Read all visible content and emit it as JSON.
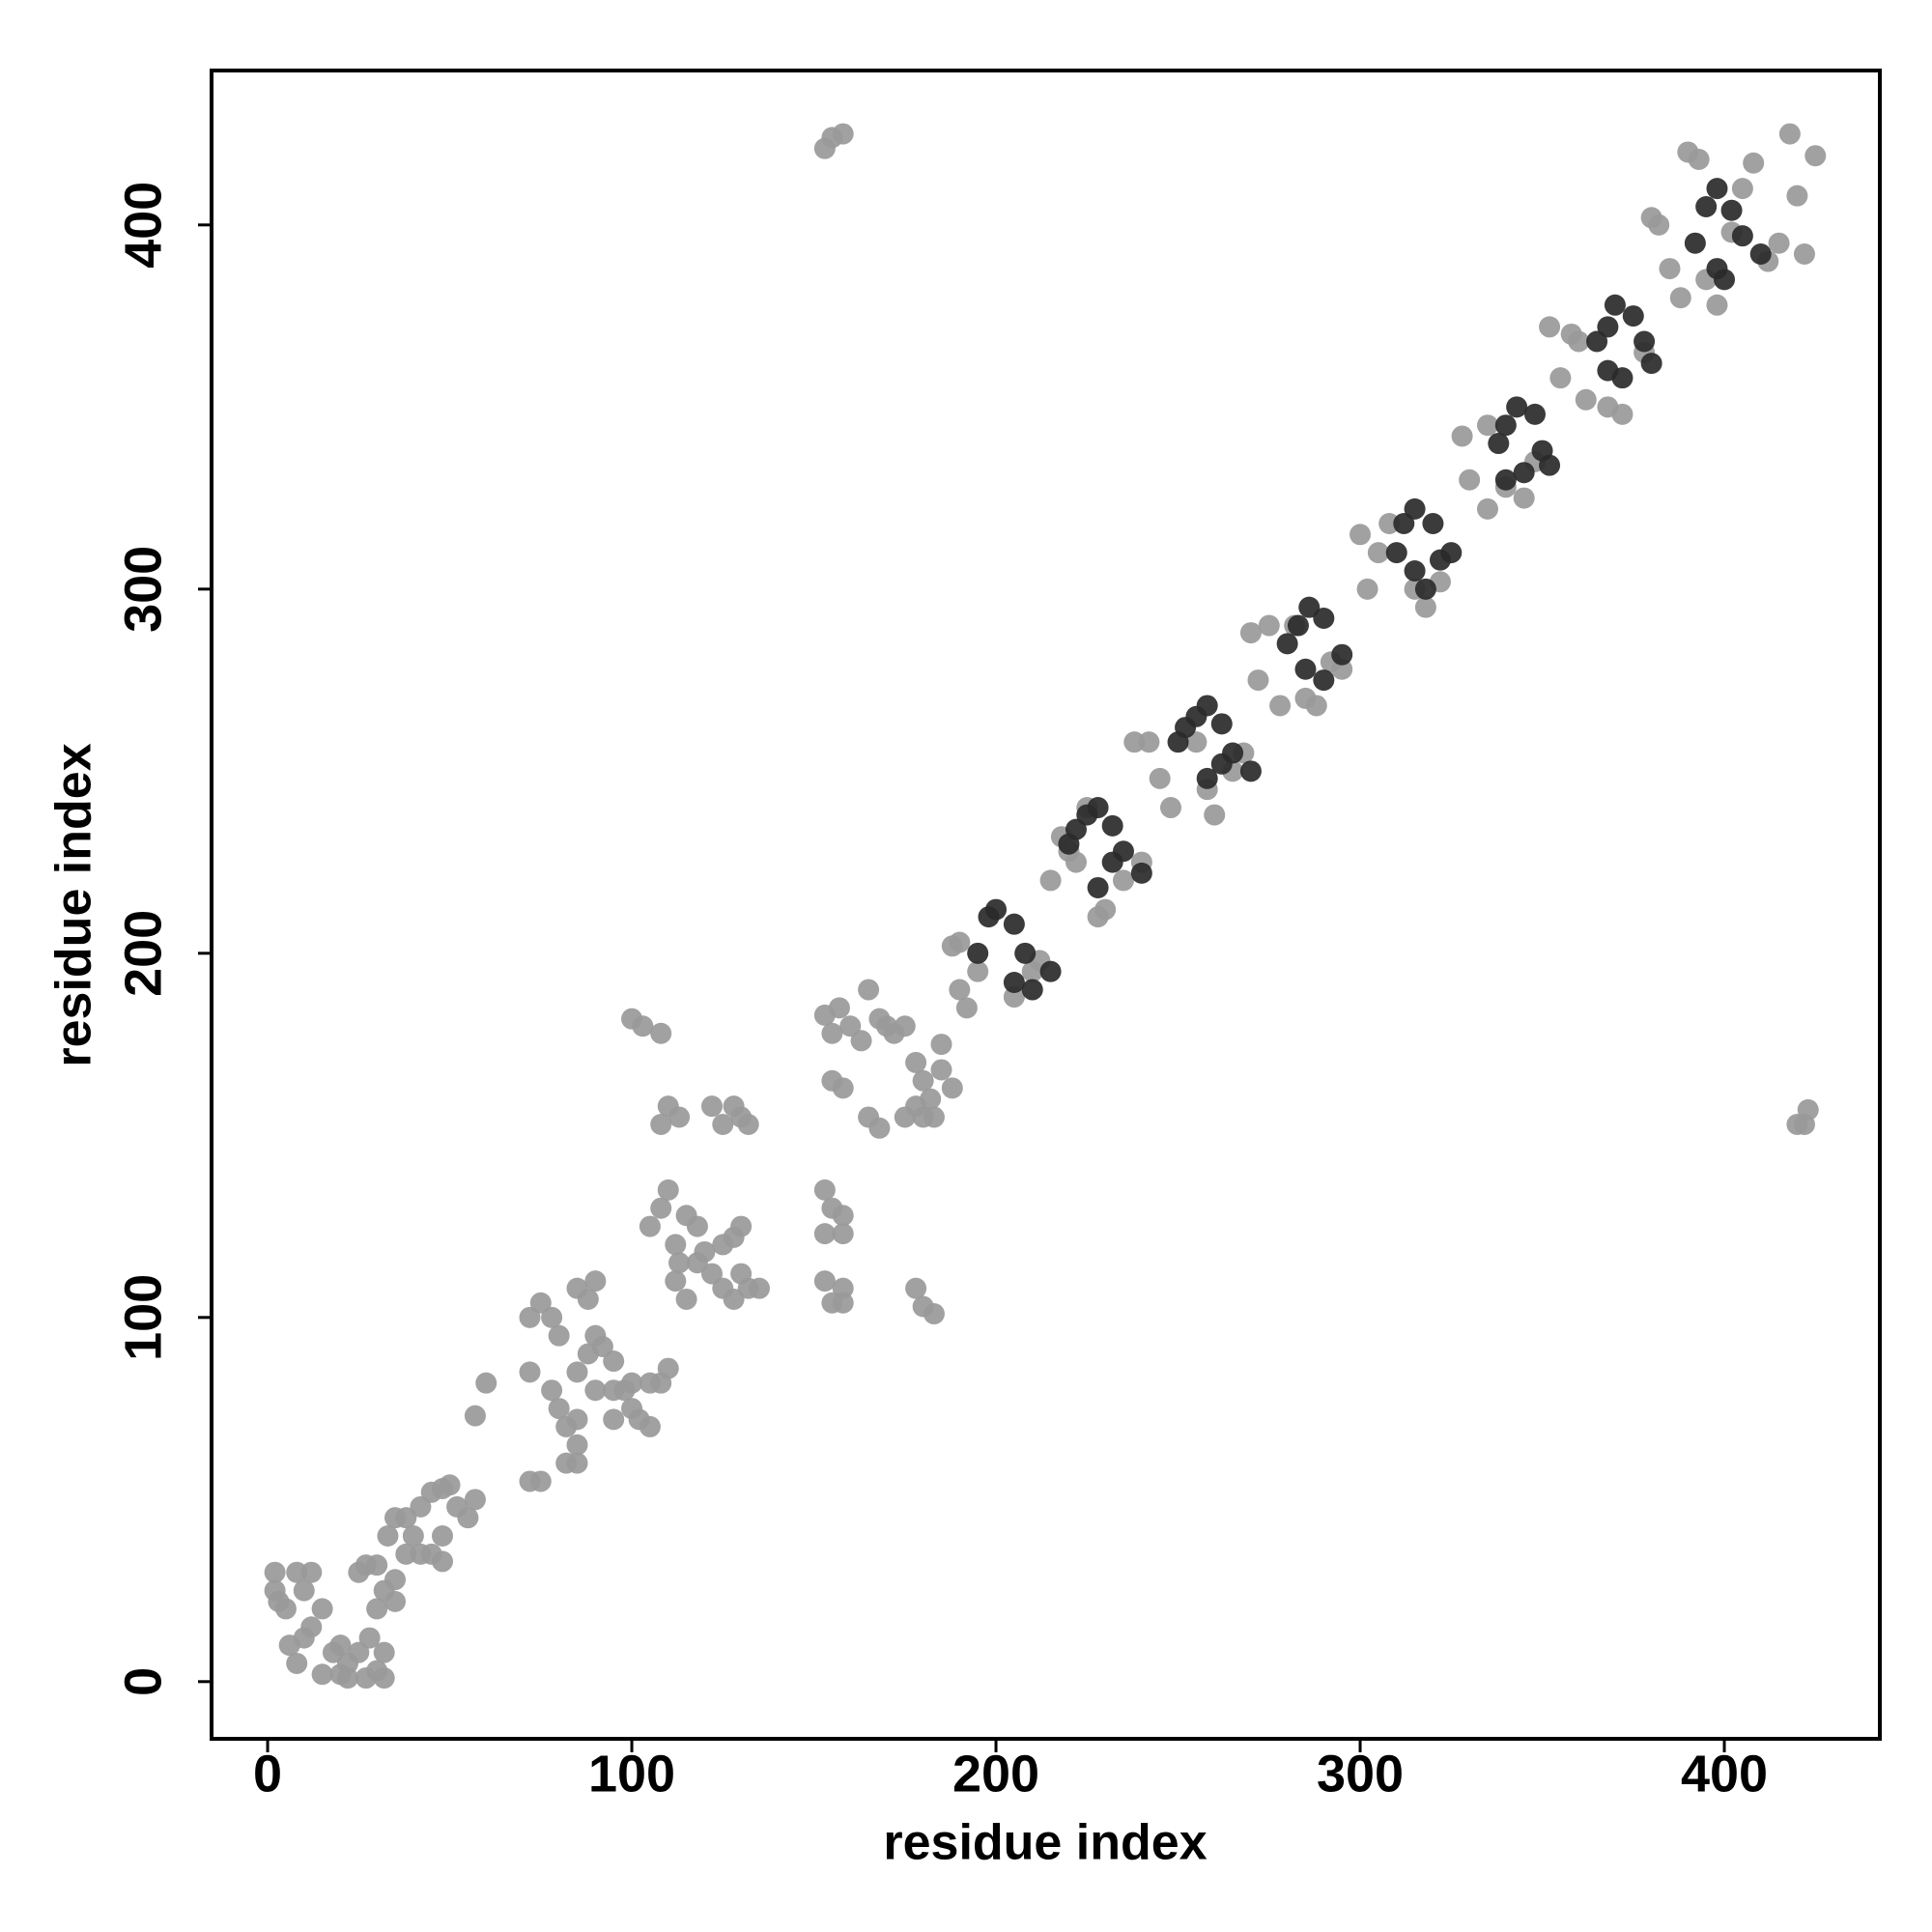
{
  "chart_data": {
    "type": "scatter",
    "x_label": "residue index",
    "y_label": "residue index",
    "xlim": [
      -15.4,
      442.7
    ],
    "ylim": [
      -15.7,
      442.4
    ],
    "xticks": [
      0,
      100,
      200,
      300,
      400
    ],
    "yticks": [
      0,
      100,
      200,
      300,
      400
    ],
    "grid": false,
    "series": [
      {
        "color": "#999999",
        "x": [
          2,
          2,
          3,
          5,
          8,
          10,
          12,
          6,
          10,
          12,
          15,
          18,
          20,
          22,
          25,
          20,
          22,
          27,
          30,
          32,
          32,
          25,
          27,
          30,
          32,
          35,
          35,
          33,
          35,
          38,
          40,
          42,
          45,
          48,
          42,
          45,
          48,
          50,
          52,
          55,
          57,
          48,
          38,
          30,
          28,
          15,
          8,
          57,
          60,
          72,
          75,
          72,
          72,
          75,
          78,
          80,
          78,
          80,
          82,
          85,
          85,
          82,
          85,
          88,
          90,
          92,
          95,
          88,
          85,
          90,
          90,
          95,
          98,
          100,
          102,
          105,
          100,
          105,
          108,
          110,
          95,
          85,
          105,
          108,
          110,
          112,
          115,
          118,
          112,
          115,
          118,
          120,
          122,
          125,
          125,
          128,
          130,
          130,
          132,
          135,
          128,
          113,
          153,
          155,
          157,
          160,
          163,
          165,
          168,
          170,
          172,
          175,
          178,
          180,
          182,
          185,
          180,
          183,
          178,
          175,
          165,
          168,
          185,
          188,
          190,
          153,
          155,
          158,
          153,
          158,
          153,
          158,
          155,
          158,
          178,
          180,
          183,
          100,
          103,
          108,
          110,
          113,
          108,
          122,
          125,
          128,
          130,
          132,
          155,
          158,
          155,
          153,
          158,
          420,
          423,
          422,
          188,
          190,
          192,
          195,
          205,
          210,
          212,
          215,
          218,
          220,
          225,
          222,
          230,
          228,
          235,
          240,
          238,
          242,
          245,
          248,
          255,
          258,
          260,
          265,
          268,
          270,
          272,
          275,
          278,
          282,
          285,
          288,
          292,
          295,
          300,
          302,
          305,
          308,
          315,
          318,
          322,
          328,
          330,
          335,
          335,
          340,
          345,
          348,
          352,
          355,
          358,
          360,
          362,
          368,
          372,
          378,
          382,
          385,
          388,
          390,
          393,
          395,
          398,
          402,
          405,
          408,
          412,
          415,
          418,
          420,
          425,
          422,
          380
        ],
        "values": [
          30,
          25,
          22,
          20,
          30,
          25,
          30,
          10,
          12,
          15,
          20,
          8,
          10,
          5,
          8,
          2,
          1,
          1,
          3,
          1,
          8,
          30,
          32,
          32,
          25,
          22,
          28,
          40,
          45,
          45,
          40,
          35,
          35,
          33,
          48,
          52,
          53,
          54,
          48,
          45,
          50,
          40,
          35,
          20,
          12,
          2,
          5,
          73,
          82,
          55,
          55,
          85,
          100,
          104,
          100,
          95,
          80,
          75,
          70,
          72,
          65,
          60,
          85,
          90,
          95,
          92,
          88,
          105,
          108,
          110,
          80,
          80,
          80,
          75,
          72,
          70,
          82,
          82,
          82,
          86,
          72,
          60,
          125,
          130,
          135,
          120,
          128,
          125,
          110,
          105,
          115,
          118,
          112,
          108,
          120,
          122,
          125,
          112,
          108,
          108,
          105,
          115,
          183,
          178,
          185,
          180,
          176,
          190,
          182,
          180,
          178,
          180,
          170,
          165,
          160,
          168,
          155,
          155,
          158,
          155,
          155,
          152,
          175,
          163,
          190,
          135,
          130,
          128,
          123,
          123,
          110,
          108,
          104,
          104,
          108,
          103,
          101,
          182,
          180,
          178,
          158,
          155,
          153,
          158,
          153,
          158,
          155,
          153,
          165,
          163,
          424,
          421,
          425,
          153,
          157,
          153,
          202,
          203,
          185,
          195,
          188,
          195,
          198,
          220,
          232,
          228,
          240,
          225,
          212,
          210,
          220,
          225,
          258,
          258,
          248,
          240,
          258,
          245,
          238,
          250,
          255,
          288,
          275,
          290,
          268,
          290,
          270,
          268,
          280,
          278,
          315,
          300,
          310,
          318,
          300,
          295,
          302,
          342,
          330,
          345,
          322,
          328,
          325,
          335,
          372,
          358,
          370,
          368,
          352,
          350,
          348,
          365,
          400,
          388,
          380,
          420,
          418,
          385,
          378,
          398,
          410,
          417,
          390,
          395,
          425,
          408,
          419,
          392,
          402
        ]
      },
      {
        "color": "#2a2a2a",
        "x": [
          195,
          198,
          200,
          205,
          208,
          205,
          210,
          215,
          220,
          222,
          225,
          228,
          232,
          228,
          232,
          235,
          240,
          250,
          252,
          255,
          258,
          262,
          258,
          262,
          265,
          270,
          280,
          283,
          286,
          290,
          285,
          290,
          295,
          310,
          312,
          315,
          320,
          315,
          318,
          322,
          325,
          338,
          340,
          343,
          348,
          340,
          345,
          350,
          352,
          365,
          368,
          370,
          375,
          368,
          372,
          378,
          380,
          392,
          395,
          398,
          402,
          398,
          400,
          405,
          410
        ],
        "values": [
          200,
          210,
          212,
          208,
          200,
          192,
          190,
          195,
          230,
          234,
          238,
          240,
          235,
          218,
          225,
          228,
          222,
          258,
          262,
          265,
          268,
          263,
          248,
          252,
          255,
          250,
          285,
          290,
          295,
          292,
          278,
          275,
          282,
          310,
          318,
          322,
          318,
          305,
          300,
          308,
          310,
          340,
          345,
          350,
          348,
          330,
          332,
          338,
          334,
          368,
          372,
          378,
          375,
          360,
          358,
          368,
          362,
          395,
          405,
          410,
          404,
          388,
          385,
          397,
          392
        ]
      }
    ]
  }
}
